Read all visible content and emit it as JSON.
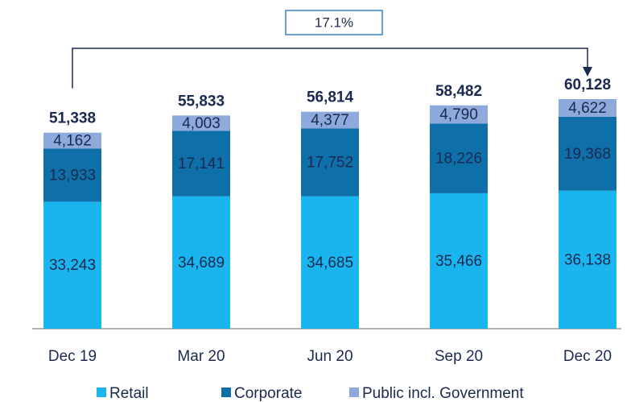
{
  "chart_data": {
    "type": "bar",
    "stacked": true,
    "annotation": "17.1%",
    "categories": [
      "Dec 19",
      "Mar 20",
      "Jun 20",
      "Sep 20",
      "Dec 20"
    ],
    "series": [
      {
        "name": "Retail",
        "color": "#1ab5ef",
        "values": [
          33243,
          34689,
          34685,
          35466,
          36138
        ],
        "value_labels": [
          "33,243",
          "34,689",
          "34,685",
          "35,466",
          "36,138"
        ]
      },
      {
        "name": "Corporate",
        "color": "#0e6fa9",
        "values": [
          13933,
          17141,
          17752,
          18226,
          19368
        ],
        "value_labels": [
          "13,933",
          "17,141",
          "17,752",
          "18,226",
          "19,368"
        ]
      },
      {
        "name": "Public incl. Government",
        "color": "#8ea9dc",
        "values": [
          4162,
          4003,
          4377,
          4790,
          4622
        ],
        "value_labels": [
          "4,162",
          "4,003",
          "4,377",
          "4,790",
          "4,622"
        ]
      }
    ],
    "totals": [
      51338,
      55833,
      56814,
      58482,
      60128
    ],
    "total_labels": [
      "51,338",
      "55,833",
      "56,814",
      "58,482",
      "60,128"
    ]
  }
}
